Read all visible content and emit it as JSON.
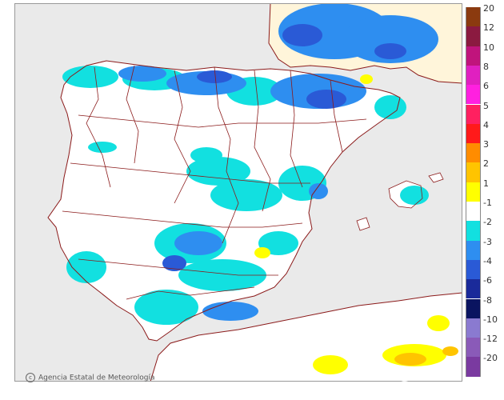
{
  "map": {
    "credit": "Agencia Estatal de Meteorología",
    "watermark": "gemer",
    "colors": {
      "background_sea": "#eaeaea",
      "land_neutral": "#ffffff",
      "border": "#8b1a1a",
      "coast": "#8b1a1a",
      "france_africa_tint": "#fff5da"
    }
  },
  "legend": {
    "items": [
      {
        "label": "20",
        "color": "#8b3a0f"
      },
      {
        "label": "12",
        "color": "#8b1a40"
      },
      {
        "label": "10",
        "color": "#c0147c"
      },
      {
        "label": "8",
        "color": "#e020c0"
      },
      {
        "label": "6",
        "color": "#ff20e0"
      },
      {
        "label": "5",
        "color": "#ff2060"
      },
      {
        "label": "4",
        "color": "#ff1a1a"
      },
      {
        "label": "3",
        "color": "#ff8c00"
      },
      {
        "label": "2",
        "color": "#ffc400"
      },
      {
        "label": "1",
        "color": "#ffff00"
      },
      {
        "label": "-1",
        "color": "#ffffff"
      },
      {
        "label": "-2",
        "color": "#12e0e0"
      },
      {
        "label": "-3",
        "color": "#2e8ef0"
      },
      {
        "label": "-4",
        "color": "#2a5ad6"
      },
      {
        "label": "-6",
        "color": "#1a2a9a"
      },
      {
        "label": "-8",
        "color": "#0a1460"
      },
      {
        "label": "-10",
        "color": "#8a7ad0"
      },
      {
        "label": "-12",
        "color": "#8a5ab8"
      },
      {
        "label": "-20",
        "color": "#7a3aa0"
      }
    ]
  }
}
